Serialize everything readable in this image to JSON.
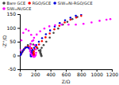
{
  "chart_data": {
    "type": "scatter",
    "xlabel": "Z/Ω",
    "ylabel": "-Z''/Ω",
    "xlim": [
      0,
      1200
    ],
    "ylim": [
      -50,
      150
    ],
    "xticks": [
      0,
      200,
      400,
      600,
      800,
      1000,
      1200
    ],
    "yticks": [
      -50,
      0,
      50,
      100,
      150
    ],
    "grid": false,
    "legend": "top",
    "series": [
      {
        "name": "Bare GCE",
        "color": "#444444",
        "x": [
          5,
          10,
          18,
          30,
          50,
          75,
          105,
          140,
          175,
          205,
          230,
          250,
          265,
          275,
          280,
          282,
          278,
          272,
          268,
          270,
          285,
          310,
          345,
          390,
          440,
          500,
          560,
          620,
          685,
          750
        ],
        "values": [
          1,
          3,
          6,
          12,
          20,
          30,
          38,
          42,
          40,
          34,
          26,
          18,
          10,
          4,
          0,
          -2,
          2,
          8,
          14,
          20,
          28,
          38,
          50,
          65,
          82,
          98,
          112,
          122,
          132,
          140
        ]
      },
      {
        "name": "RGO/GCE",
        "color": "#ff0000",
        "x": [
          3,
          7,
          13,
          22,
          38,
          58,
          82,
          108,
          133,
          153,
          168,
          178,
          183,
          185,
          182,
          177,
          172,
          170,
          173,
          182,
          198,
          220,
          250,
          288,
          335,
          390,
          450,
          515,
          585,
          660,
          735,
          800
        ],
        "values": [
          1,
          2,
          5,
          9,
          16,
          24,
          30,
          33,
          31,
          26,
          19,
          13,
          7,
          2,
          -1,
          -3,
          -1,
          4,
          9,
          15,
          22,
          30,
          40,
          52,
          66,
          80,
          95,
          108,
          120,
          130,
          138,
          144
        ]
      },
      {
        "name": "SiW₁₂Ni-RGO/GCE",
        "color": "#0000dd",
        "x": [
          3,
          6,
          11,
          19,
          32,
          50,
          70,
          93,
          114,
          130,
          142,
          150,
          154,
          155,
          152,
          148,
          144,
          142,
          145,
          153,
          167,
          187,
          214,
          248,
          290,
          340,
          395,
          455,
          520,
          590,
          660,
          730,
          800
        ],
        "values": [
          1,
          2,
          4,
          8,
          14,
          21,
          27,
          30,
          28,
          23,
          17,
          11,
          6,
          2,
          -1,
          -3,
          -2,
          2,
          7,
          13,
          20,
          28,
          38,
          50,
          63,
          77,
          91,
          105,
          118,
          128,
          137,
          144,
          150
        ]
      },
      {
        "name": "SiW₁₂Ni/GCE",
        "color": "#ff00ff",
        "x": [
          5,
          20,
          45,
          80,
          115,
          148,
          175,
          195,
          208,
          212,
          208,
          198,
          185,
          170,
          155,
          143,
          135,
          132,
          135,
          143,
          160,
          185,
          220,
          265,
          320,
          385,
          460,
          545,
          635,
          730,
          830,
          935,
          1040,
          1130,
          1180
        ],
        "values": [
          20,
          55,
          82,
          95,
          90,
          75,
          55,
          38,
          22,
          10,
          2,
          -3,
          -5,
          -3,
          2,
          8,
          15,
          22,
          30,
          40,
          52,
          64,
          76,
          88,
          98,
          106,
          110,
          112,
          112,
          112,
          115,
          120,
          126,
          130,
          132
        ]
      }
    ]
  }
}
